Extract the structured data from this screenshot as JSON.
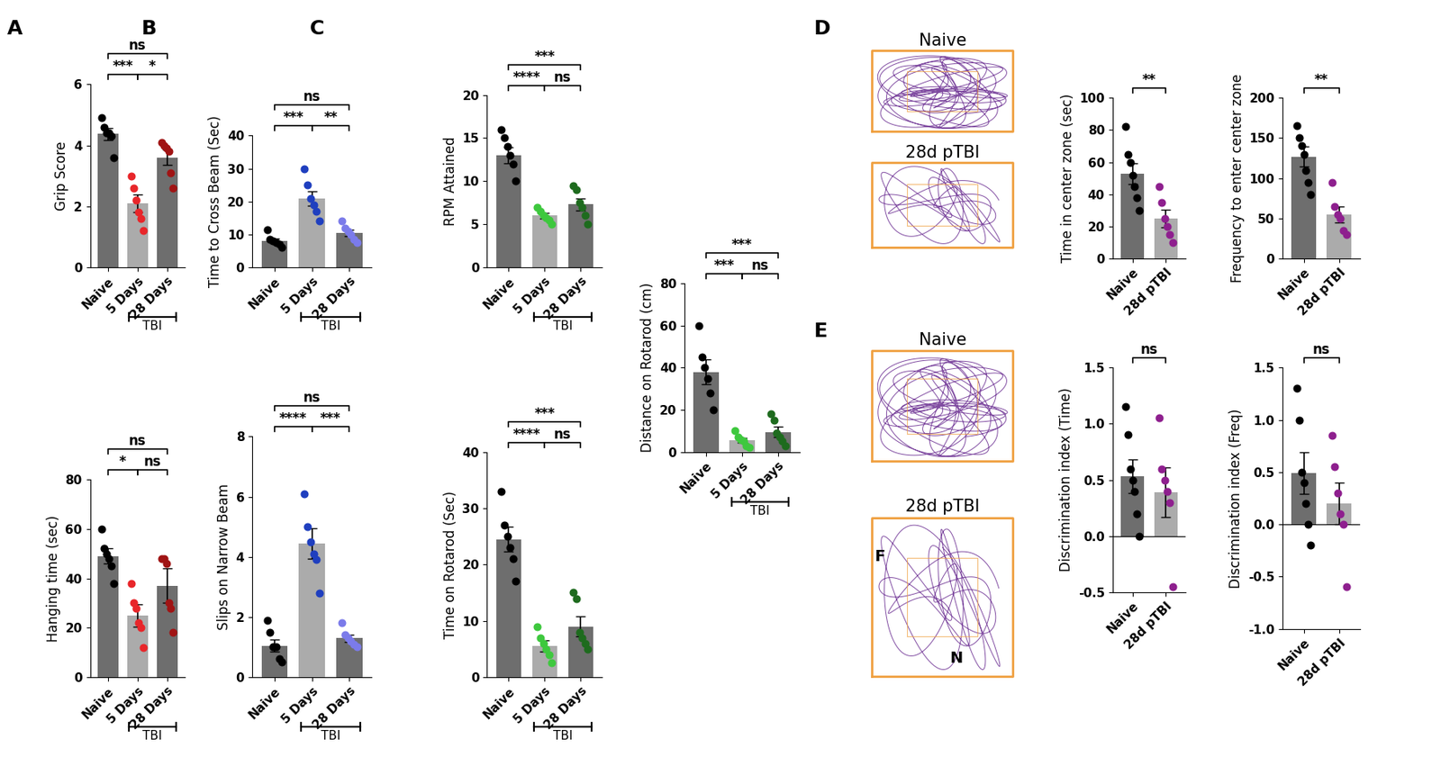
{
  "chart_data": [
    {
      "type": "bar",
      "panel": "A",
      "ylabel": "Grip Score",
      "categories": [
        "Naive",
        "5 Days",
        "28 Days"
      ],
      "values": [
        4.37,
        2.1,
        3.6
      ],
      "errors": [
        0.2,
        0.3,
        0.25
      ],
      "colors": [
        "#6e6e6e",
        "#ababab",
        "#6e6e6e"
      ],
      "points": [
        {
          "color": "#000000",
          "values": [
            4.9,
            4.6,
            4.4,
            4.4,
            4.3,
            3.6
          ]
        },
        {
          "color": "#e8262a",
          "values": [
            3.0,
            2.6,
            2.2,
            1.8,
            1.6,
            1.2
          ]
        },
        {
          "color": "#a01414",
          "values": [
            4.1,
            4.0,
            3.9,
            3.8,
            3.1,
            2.6
          ]
        }
      ],
      "ylim": [
        0,
        6
      ],
      "yticks": [
        0,
        2,
        4,
        6
      ],
      "comparisons": [
        {
          "between": [
            "Naive",
            "5 Days"
          ],
          "text": "***"
        },
        {
          "between": [
            "5 Days",
            "28 Days"
          ],
          "text": "*"
        },
        {
          "between": [
            "Naive",
            "28 Days"
          ],
          "text": "ns"
        }
      ],
      "group": {
        "text": "TBI",
        "categories": [
          "5 Days",
          "28 Days"
        ]
      }
    },
    {
      "type": "bar",
      "ylabel": "Hanging time (sec)",
      "categories": [
        "Naive",
        "5 Days",
        "28 Days"
      ],
      "values": [
        49,
        25,
        37
      ],
      "errors": [
        3,
        4.5,
        7
      ],
      "colors": [
        "#6e6e6e",
        "#ababab",
        "#6e6e6e"
      ],
      "points": [
        {
          "color": "#000000",
          "values": [
            60,
            52,
            50,
            48,
            45,
            38
          ]
        },
        {
          "color": "#e8262a",
          "values": [
            38,
            30,
            28,
            22,
            20,
            12
          ]
        },
        {
          "color": "#a01414",
          "values": [
            48,
            48,
            46,
            30,
            28,
            18
          ]
        }
      ],
      "ylim": [
        0,
        80
      ],
      "yticks": [
        0,
        20,
        40,
        60,
        80
      ],
      "comparisons": [
        {
          "between": [
            "Naive",
            "5 Days"
          ],
          "text": "*"
        },
        {
          "between": [
            "5 Days",
            "28 Days"
          ],
          "text": "ns"
        },
        {
          "between": [
            "Naive",
            "28 Days"
          ],
          "text": "ns"
        }
      ],
      "group": {
        "text": "TBI",
        "categories": [
          "5 Days",
          "28 Days"
        ]
      }
    },
    {
      "type": "bar",
      "panel": "B",
      "ylabel": "Time to Cross Beam (Sec)",
      "categories": [
        "Naive",
        "5 Days",
        "28 Days"
      ],
      "values": [
        8,
        21,
        10.5
      ],
      "errors": [
        0.8,
        2.2,
        1
      ],
      "colors": [
        "#6e6e6e",
        "#ababab",
        "#6e6e6e"
      ],
      "points": [
        {
          "color": "#000000",
          "values": [
            11.5,
            8.5,
            8,
            7.5,
            7,
            6
          ]
        },
        {
          "color": "#1f3fbf",
          "values": [
            30,
            25,
            21,
            19,
            17,
            14
          ]
        },
        {
          "color": "#7b7bea",
          "values": [
            14,
            12,
            11,
            10,
            8.5,
            7.5
          ]
        }
      ],
      "ylim": [
        0,
        40
      ],
      "yticks": [
        0,
        10,
        20,
        30,
        40
      ],
      "comparisons": [
        {
          "between": [
            "Naive",
            "5 Days"
          ],
          "text": "***"
        },
        {
          "between": [
            "5 Days",
            "28 Days"
          ],
          "text": "**"
        },
        {
          "between": [
            "Naive",
            "28 Days"
          ],
          "text": "ns"
        }
      ],
      "group": {
        "text": "TBI",
        "categories": [
          "5 Days",
          "28 Days"
        ]
      }
    },
    {
      "type": "bar",
      "ylabel": "Slips on Narrow Beam",
      "categories": [
        "Naive",
        "5 Days",
        "28 Days"
      ],
      "values": [
        1.05,
        4.45,
        1.3
      ],
      "errors": [
        0.2,
        0.5,
        0.12
      ],
      "colors": [
        "#6e6e6e",
        "#ababab",
        "#6e6e6e"
      ],
      "points": [
        {
          "color": "#000000",
          "values": [
            1.9,
            1.5,
            1.0,
            1.0,
            0.6,
            0.5
          ]
        },
        {
          "color": "#1f3fbf",
          "values": [
            6.1,
            5.0,
            4.5,
            4.1,
            3.9,
            2.8
          ]
        },
        {
          "color": "#7b7bea",
          "values": [
            1.8,
            1.4,
            1.3,
            1.2,
            1.1,
            1.0
          ]
        }
      ],
      "ylim": [
        0,
        8
      ],
      "yticks": [
        0,
        2,
        4,
        6,
        8
      ],
      "comparisons": [
        {
          "between": [
            "Naive",
            "5 Days"
          ],
          "text": "****"
        },
        {
          "between": [
            "5 Days",
            "28 Days"
          ],
          "text": "***"
        },
        {
          "between": [
            "Naive",
            "28 Days"
          ],
          "text": "ns"
        }
      ],
      "group": {
        "text": "TBI",
        "categories": [
          "5 Days",
          "28 Days"
        ]
      }
    },
    {
      "type": "bar",
      "panel": "C",
      "ylabel": "RPM Attained",
      "categories": [
        "Naive",
        "5 Days",
        "28 Days"
      ],
      "values": [
        13,
        6,
        7.3
      ],
      "errors": [
        0.9,
        0.3,
        0.7
      ],
      "colors": [
        "#6e6e6e",
        "#ababab",
        "#6e6e6e"
      ],
      "points": [
        {
          "color": "#000000",
          "values": [
            16,
            15,
            14,
            13,
            12,
            10
          ]
        },
        {
          "color": "#3ec83e",
          "values": [
            7,
            6.5,
            6,
            5.8,
            5.5,
            5
          ]
        },
        {
          "color": "#1e6b1e",
          "values": [
            9.5,
            9,
            7.5,
            7,
            6,
            5
          ]
        }
      ],
      "ylim": [
        0,
        20
      ],
      "yticks": [
        0,
        5,
        10,
        15,
        20
      ],
      "comparisons": [
        {
          "between": [
            "Naive",
            "5 Days"
          ],
          "text": "****"
        },
        {
          "between": [
            "5 Days",
            "28 Days"
          ],
          "text": "ns"
        },
        {
          "between": [
            "Naive",
            "28 Days"
          ],
          "text": "***"
        }
      ],
      "group": {
        "text": "TBI",
        "categories": [
          "5 Days",
          "28 Days"
        ]
      }
    },
    {
      "type": "bar",
      "ylabel": "Time on Rotarod (Sec)",
      "categories": [
        "Naive",
        "5 Days",
        "28 Days"
      ],
      "values": [
        24.5,
        5.5,
        9
      ],
      "errors": [
        2.2,
        1,
        1.8
      ],
      "colors": [
        "#6e6e6e",
        "#ababab",
        "#6e6e6e"
      ],
      "points": [
        {
          "color": "#000000",
          "values": [
            33,
            27,
            25,
            23,
            21,
            17
          ]
        },
        {
          "color": "#3ec83e",
          "values": [
            9,
            7,
            6,
            5,
            4,
            2.5
          ]
        },
        {
          "color": "#1e6b1e",
          "values": [
            15,
            14,
            8,
            7,
            6,
            5
          ]
        }
      ],
      "ylim": [
        0,
        40
      ],
      "yticks": [
        0,
        10,
        20,
        30,
        40
      ],
      "comparisons": [
        {
          "between": [
            "Naive",
            "5 Days"
          ],
          "text": "****"
        },
        {
          "between": [
            "5 Days",
            "28 Days"
          ],
          "text": "ns"
        },
        {
          "between": [
            "Naive",
            "28 Days"
          ],
          "text": "***"
        }
      ],
      "group": {
        "text": "TBI",
        "categories": [
          "5 Days",
          "28 Days"
        ]
      }
    },
    {
      "type": "bar",
      "ylabel": "Distance on Rotarod (cm)",
      "categories": [
        "Naive",
        "5 Days",
        "28 Days"
      ],
      "values": [
        38,
        5.5,
        9.5
      ],
      "errors": [
        6,
        1.2,
        2.5
      ],
      "colors": [
        "#6e6e6e",
        "#ababab",
        "#6e6e6e"
      ],
      "points": [
        {
          "color": "#000000",
          "values": [
            60,
            45,
            40,
            35,
            28,
            20
          ]
        },
        {
          "color": "#3ec83e",
          "values": [
            10,
            7,
            6,
            5,
            3,
            2
          ]
        },
        {
          "color": "#1e6b1e",
          "values": [
            18,
            15,
            9,
            7,
            5,
            3
          ]
        }
      ],
      "ylim": [
        0,
        80
      ],
      "yticks": [
        0,
        20,
        40,
        60,
        80
      ],
      "comparisons": [
        {
          "between": [
            "Naive",
            "5 Days"
          ],
          "text": "***"
        },
        {
          "between": [
            "5 Days",
            "28 Days"
          ],
          "text": "ns"
        },
        {
          "between": [
            "Naive",
            "28 Days"
          ],
          "text": "***"
        }
      ],
      "group": {
        "text": "TBI",
        "categories": [
          "5 Days",
          "28 Days"
        ]
      }
    },
    {
      "type": "bar",
      "ylabel": "Time in center zone (sec)",
      "categories": [
        "Naive",
        "28d pTBI"
      ],
      "values": [
        53,
        25
      ],
      "errors": [
        6.5,
        5.5
      ],
      "colors": [
        "#6e6e6e",
        "#ababab"
      ],
      "points": [
        {
          "color": "#000000",
          "values": [
            82,
            65,
            60,
            52,
            45,
            38,
            30
          ]
        },
        {
          "color": "#8e1f8e",
          "values": [
            45,
            35,
            25,
            20,
            15,
            10
          ]
        }
      ],
      "ylim": [
        0,
        100
      ],
      "yticks": [
        0,
        20,
        40,
        60,
        80,
        100
      ],
      "comparisons": [
        {
          "between": [
            "Naive",
            "28d pTBI"
          ],
          "text": "**"
        }
      ]
    },
    {
      "type": "bar",
      "ylabel": "Frequency to enter center zone",
      "categories": [
        "Naive",
        "28d pTBI"
      ],
      "values": [
        127,
        55
      ],
      "errors": [
        12,
        10
      ],
      "colors": [
        "#6e6e6e",
        "#ababab"
      ],
      "points": [
        {
          "color": "#000000",
          "values": [
            165,
            150,
            140,
            130,
            110,
            95,
            80
          ]
        },
        {
          "color": "#8e1f8e",
          "values": [
            95,
            65,
            55,
            50,
            35,
            30
          ]
        }
      ],
      "ylim": [
        0,
        200
      ],
      "yticks": [
        0,
        50,
        100,
        150,
        200
      ],
      "comparisons": [
        {
          "between": [
            "Naive",
            "28d pTBI"
          ],
          "text": "**"
        }
      ]
    },
    {
      "type": "bar",
      "ylabel": "Discrimination index (Time)",
      "categories": [
        "Naive",
        "28d pTBI"
      ],
      "values": [
        0.53,
        0.39
      ],
      "errors": [
        0.15,
        0.22
      ],
      "colors": [
        "#6e6e6e",
        "#ababab"
      ],
      "points": [
        {
          "color": "#000000",
          "values": [
            1.15,
            0.9,
            0.6,
            0.5,
            0.4,
            0.2,
            0.0
          ]
        },
        {
          "color": "#8e1f8e",
          "values": [
            1.05,
            0.6,
            0.5,
            0.4,
            0.3,
            -0.45
          ]
        }
      ],
      "ylim": [
        -0.5,
        1.5
      ],
      "yticks": [
        -0.5,
        {
          "value": 0,
          "label": "0.0"
        },
        0.5,
        {
          "value": 1,
          "label": "1.0"
        },
        1.5
      ],
      "comparisons": [
        {
          "between": [
            "Naive",
            "28d pTBI"
          ],
          "text": "ns"
        }
      ]
    },
    {
      "type": "bar",
      "ylabel": "Discrimination index (Freq)",
      "categories": [
        "Naive",
        "28d pTBI"
      ],
      "values": [
        0.49,
        0.2
      ],
      "errors": [
        0.2,
        0.2
      ],
      "colors": [
        "#6e6e6e",
        "#ababab"
      ],
      "points": [
        {
          "color": "#000000",
          "values": [
            1.3,
            1.0,
            0.5,
            0.4,
            0.2,
            0.0,
            -0.2
          ]
        },
        {
          "color": "#8e1f8e",
          "values": [
            0.85,
            0.55,
            0.3,
            0.1,
            0.0,
            -0.6
          ]
        }
      ],
      "ylim": [
        -1.0,
        1.5
      ],
      "yticks": [
        {
          "value": -1,
          "label": "-1.0"
        },
        -0.5,
        {
          "value": 0,
          "label": "0.0"
        },
        0.5,
        {
          "value": 1,
          "label": "1.0"
        },
        1.5
      ],
      "comparisons": [
        {
          "between": [
            "Naive",
            "28d pTBI"
          ],
          "text": "ns"
        }
      ]
    }
  ],
  "tracks": [
    {
      "panel": "D",
      "images": [
        {
          "title": "Naive"
        },
        {
          "title": "28d pTBI"
        }
      ]
    },
    {
      "panel": "E",
      "images": [
        {
          "title": "Naive"
        },
        {
          "title": "28d pTBI",
          "objects": [
            "F",
            "N"
          ]
        }
      ]
    }
  ]
}
